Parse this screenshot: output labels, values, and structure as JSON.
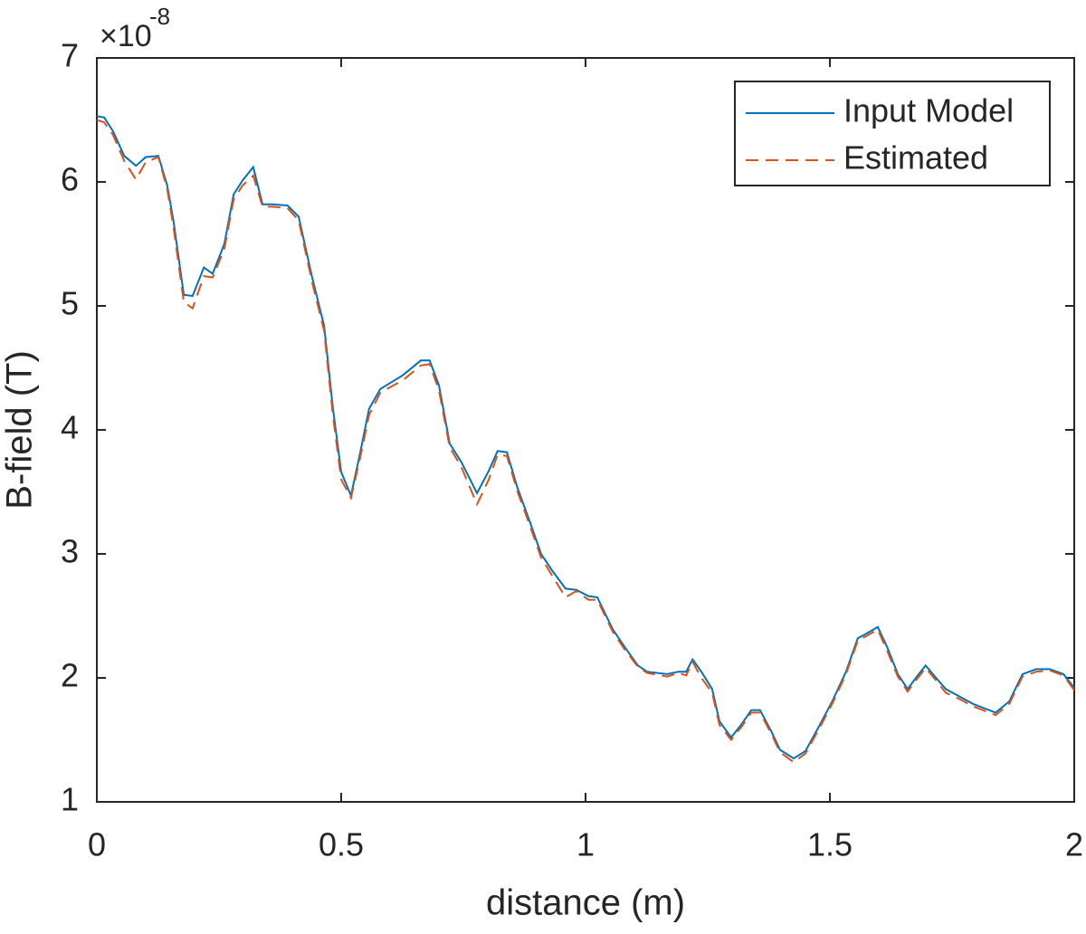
{
  "chart_data": {
    "type": "line",
    "xlabel": "distance (m)",
    "ylabel": "B-field (T)",
    "y_exponent": {
      "base": "×10",
      "power": "-8"
    },
    "x": [
      0,
      0.015,
      0.033,
      0.056,
      0.08,
      0.1,
      0.126,
      0.144,
      0.157,
      0.178,
      0.196,
      0.219,
      0.237,
      0.261,
      0.28,
      0.298,
      0.32,
      0.339,
      0.357,
      0.39,
      0.413,
      0.44,
      0.465,
      0.483,
      0.5,
      0.52,
      0.539,
      0.557,
      0.58,
      0.626,
      0.663,
      0.681,
      0.7,
      0.722,
      0.746,
      0.778,
      0.802,
      0.82,
      0.839,
      0.861,
      0.885,
      0.909,
      0.931,
      0.959,
      0.981,
      1.006,
      1.024,
      1.056,
      1.08,
      1.107,
      1.126,
      1.167,
      1.19,
      1.206,
      1.219,
      1.237,
      1.259,
      1.274,
      1.298,
      1.32,
      1.339,
      1.357,
      1.38,
      1.398,
      1.426,
      1.45,
      1.478,
      1.506,
      1.533,
      1.557,
      1.576,
      1.598,
      1.617,
      1.639,
      1.659,
      1.678,
      1.696,
      1.715,
      1.737,
      1.765,
      1.793,
      1.839,
      1.867,
      1.894,
      1.922,
      1.95,
      1.978,
      2.0
    ],
    "series": [
      {
        "name": "Input Model",
        "color": "#0072bd",
        "dash": "solid",
        "values": [
          6.53,
          6.52,
          6.41,
          6.21,
          6.13,
          6.2,
          6.21,
          5.97,
          5.68,
          5.09,
          5.08,
          5.31,
          5.26,
          5.5,
          5.9,
          6.01,
          6.12,
          5.82,
          5.82,
          5.81,
          5.72,
          5.24,
          4.84,
          4.18,
          3.66,
          3.47,
          3.82,
          4.17,
          4.33,
          4.44,
          4.56,
          4.56,
          4.36,
          3.89,
          3.74,
          3.49,
          3.67,
          3.83,
          3.82,
          3.53,
          3.27,
          3.0,
          2.87,
          2.72,
          2.71,
          2.66,
          2.65,
          2.39,
          2.25,
          2.1,
          2.05,
          2.03,
          2.05,
          2.05,
          2.15,
          2.05,
          1.91,
          1.65,
          1.52,
          1.63,
          1.74,
          1.74,
          1.57,
          1.42,
          1.35,
          1.41,
          1.61,
          1.82,
          2.05,
          2.32,
          2.36,
          2.41,
          2.25,
          2.03,
          1.91,
          2.01,
          2.1,
          2.01,
          1.91,
          1.85,
          1.79,
          1.72,
          1.81,
          2.03,
          2.07,
          2.07,
          2.03,
          1.92
        ]
      },
      {
        "name": "Estimated",
        "color": "#d95319",
        "dash": "dashed",
        "values": [
          6.5,
          6.48,
          6.38,
          6.17,
          6.02,
          6.16,
          6.2,
          5.94,
          5.63,
          5.03,
          4.98,
          5.24,
          5.23,
          5.46,
          5.86,
          5.97,
          6.05,
          5.8,
          5.8,
          5.79,
          5.69,
          5.2,
          4.8,
          4.12,
          3.6,
          3.45,
          3.78,
          4.12,
          4.3,
          4.4,
          4.52,
          4.53,
          4.32,
          3.86,
          3.7,
          3.4,
          3.6,
          3.8,
          3.79,
          3.5,
          3.24,
          2.97,
          2.83,
          2.65,
          2.7,
          2.63,
          2.63,
          2.37,
          2.23,
          2.09,
          2.04,
          2.01,
          2.04,
          2.02,
          2.13,
          2.0,
          1.88,
          1.62,
          1.5,
          1.61,
          1.72,
          1.72,
          1.55,
          1.4,
          1.32,
          1.39,
          1.59,
          1.8,
          2.03,
          2.3,
          2.34,
          2.39,
          2.22,
          2.01,
          1.89,
          1.99,
          2.08,
          1.99,
          1.88,
          1.83,
          1.77,
          1.7,
          1.79,
          2.01,
          2.05,
          2.06,
          2.02,
          1.9
        ]
      }
    ],
    "xlim": [
      0,
      2
    ],
    "xticks": [
      0,
      0.5,
      1,
      1.5,
      2
    ],
    "ylim": [
      1,
      7
    ],
    "yticks": [
      1,
      2,
      3,
      4,
      5,
      6,
      7
    ],
    "grid": false,
    "legend": "northeast"
  }
}
